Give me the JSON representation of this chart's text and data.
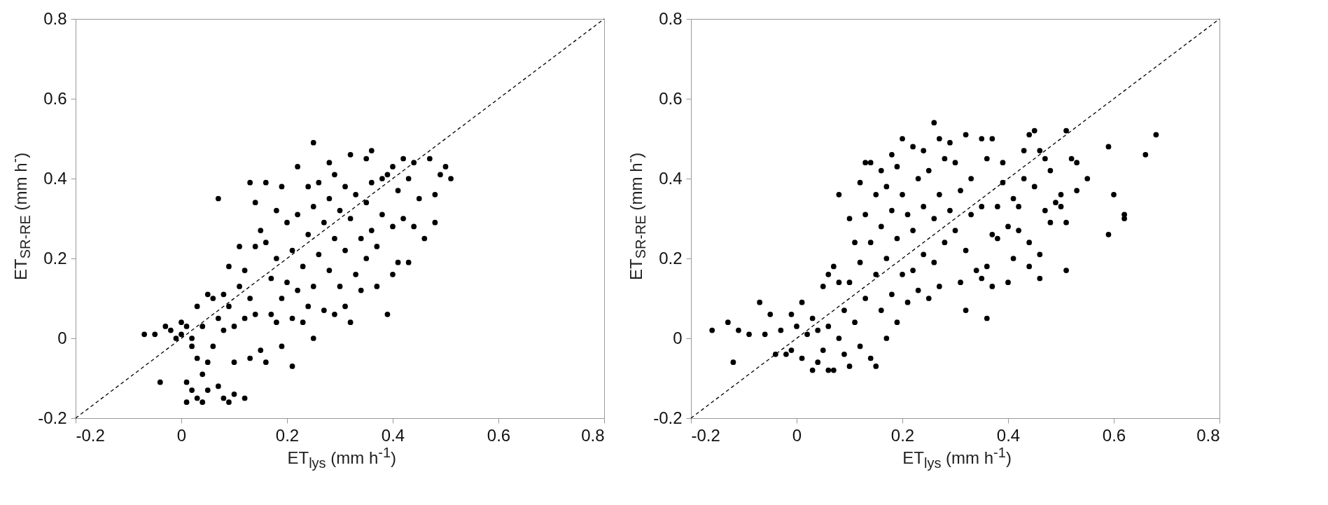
{
  "chart_data": [
    {
      "type": "scatter",
      "xlabel": "ET$_{lys}$ (mm h$^{-1}$)",
      "ylabel": "ET$_{SR-RE}$ (mm h$^{-}$)",
      "xlim": [
        -0.2,
        0.8
      ],
      "ylim": [
        -0.2,
        0.8
      ],
      "xticks": [
        -0.2,
        0,
        0.2,
        0.4,
        0.6,
        0.8
      ],
      "yticks": [
        -0.2,
        0,
        0.2,
        0.4,
        0.6,
        0.8
      ],
      "grid": false,
      "marker": "circle",
      "series": [
        {
          "type": "line",
          "color": "#000000",
          "line_style": "dashed",
          "marker": "none",
          "x": [
            -0.2,
            0.8
          ],
          "values": [
            -0.2,
            0.8
          ]
        },
        {
          "color": "#000000",
          "x": [
            -0.07,
            -0.05,
            -0.04,
            -0.03,
            -0.02,
            -0.01,
            0.0,
            0.0,
            0.01,
            0.01,
            0.01,
            0.02,
            0.02,
            0.02,
            0.03,
            0.03,
            0.03,
            0.04,
            0.04,
            0.04,
            0.05,
            0.05,
            0.05,
            0.06,
            0.06,
            0.07,
            0.07,
            0.07,
            0.08,
            0.08,
            0.08,
            0.09,
            0.09,
            0.09,
            0.1,
            0.1,
            0.1,
            0.11,
            0.11,
            0.12,
            0.12,
            0.12,
            0.13,
            0.13,
            0.13,
            0.14,
            0.14,
            0.14,
            0.15,
            0.15,
            0.16,
            0.16,
            0.16,
            0.17,
            0.17,
            0.18,
            0.18,
            0.18,
            0.19,
            0.19,
            0.19,
            0.2,
            0.2,
            0.21,
            0.21,
            0.21,
            0.22,
            0.22,
            0.22,
            0.23,
            0.23,
            0.24,
            0.24,
            0.24,
            0.25,
            0.25,
            0.25,
            0.25,
            0.26,
            0.26,
            0.27,
            0.27,
            0.28,
            0.28,
            0.28,
            0.29,
            0.29,
            0.29,
            0.3,
            0.3,
            0.31,
            0.31,
            0.31,
            0.32,
            0.32,
            0.32,
            0.33,
            0.33,
            0.34,
            0.34,
            0.35,
            0.35,
            0.35,
            0.36,
            0.36,
            0.36,
            0.37,
            0.37,
            0.38,
            0.38,
            0.39,
            0.39,
            0.4,
            0.4,
            0.4,
            0.41,
            0.41,
            0.42,
            0.42,
            0.43,
            0.43,
            0.44,
            0.44,
            0.45,
            0.46,
            0.47,
            0.48,
            0.48,
            0.49,
            0.5,
            0.51
          ],
          "values": [
            0.01,
            0.01,
            -0.11,
            0.03,
            0.02,
            0.0,
            0.04,
            0.01,
            -0.16,
            -0.11,
            0.03,
            -0.02,
            -0.13,
            0.0,
            -0.15,
            0.08,
            -0.05,
            -0.16,
            0.03,
            -0.09,
            0.11,
            -0.06,
            -0.13,
            0.1,
            -0.02,
            0.35,
            -0.12,
            0.05,
            0.11,
            -0.15,
            0.02,
            0.18,
            -0.16,
            0.08,
            -0.06,
            0.03,
            -0.14,
            0.13,
            0.23,
            -0.15,
            0.05,
            0.17,
            0.39,
            0.1,
            -0.05,
            0.34,
            0.06,
            0.23,
            0.27,
            -0.03,
            0.39,
            0.24,
            -0.06,
            0.15,
            0.06,
            0.32,
            0.2,
            0.04,
            0.38,
            0.1,
            -0.02,
            0.29,
            0.14,
            0.22,
            -0.07,
            0.05,
            0.43,
            0.31,
            0.12,
            0.18,
            0.04,
            0.38,
            0.26,
            0.08,
            0.49,
            0.33,
            0.0,
            0.13,
            0.21,
            0.39,
            0.29,
            0.07,
            0.44,
            0.35,
            0.17,
            0.41,
            0.06,
            0.25,
            0.32,
            0.13,
            0.38,
            0.08,
            0.22,
            0.46,
            0.04,
            0.3,
            0.36,
            0.16,
            0.25,
            0.12,
            0.45,
            0.34,
            0.2,
            0.47,
            0.39,
            0.27,
            0.13,
            0.23,
            0.4,
            0.31,
            0.06,
            0.41,
            0.16,
            0.28,
            0.43,
            0.19,
            0.37,
            0.45,
            0.3,
            0.19,
            0.4,
            0.28,
            0.44,
            0.35,
            0.25,
            0.45,
            0.29,
            0.36,
            0.41,
            0.43,
            0.4
          ]
        }
      ]
    },
    {
      "type": "scatter",
      "xlabel": "ET$_{lys}$ (mm h$^{-1}$)",
      "ylabel": "ET$_{SR-RE}$ (mm h$^{-}$)",
      "xlim": [
        -0.2,
        0.8
      ],
      "ylim": [
        -0.2,
        0.8
      ],
      "xticks": [
        -0.2,
        0,
        0.2,
        0.4,
        0.6,
        0.8
      ],
      "yticks": [
        -0.2,
        0,
        0.2,
        0.4,
        0.6,
        0.8
      ],
      "grid": false,
      "marker": "circle",
      "series": [
        {
          "type": "line",
          "color": "#000000",
          "line_style": "dashed",
          "marker": "none",
          "x": [
            -0.2,
            0.8
          ],
          "values": [
            -0.2,
            0.8
          ]
        },
        {
          "color": "#000000",
          "x": [
            -0.16,
            -0.13,
            -0.12,
            -0.11,
            -0.09,
            -0.07,
            -0.06,
            -0.05,
            -0.04,
            -0.03,
            -0.02,
            -0.01,
            -0.01,
            0.0,
            0.01,
            0.01,
            0.02,
            0.03,
            0.03,
            0.04,
            0.04,
            0.05,
            0.05,
            0.06,
            0.06,
            0.06,
            0.07,
            0.07,
            0.08,
            0.08,
            0.08,
            0.09,
            0.09,
            0.1,
            0.1,
            0.1,
            0.11,
            0.11,
            0.12,
            0.12,
            0.12,
            0.13,
            0.13,
            0.13,
            0.14,
            0.14,
            0.14,
            0.15,
            0.15,
            0.15,
            0.16,
            0.16,
            0.16,
            0.17,
            0.17,
            0.17,
            0.18,
            0.18,
            0.18,
            0.19,
            0.19,
            0.19,
            0.2,
            0.2,
            0.2,
            0.21,
            0.21,
            0.22,
            0.22,
            0.22,
            0.23,
            0.23,
            0.24,
            0.24,
            0.24,
            0.25,
            0.25,
            0.26,
            0.26,
            0.26,
            0.27,
            0.27,
            0.27,
            0.28,
            0.28,
            0.29,
            0.29,
            0.3,
            0.3,
            0.31,
            0.31,
            0.32,
            0.32,
            0.32,
            0.33,
            0.33,
            0.34,
            0.35,
            0.35,
            0.35,
            0.36,
            0.36,
            0.36,
            0.37,
            0.37,
            0.37,
            0.38,
            0.38,
            0.39,
            0.39,
            0.4,
            0.4,
            0.41,
            0.41,
            0.42,
            0.42,
            0.43,
            0.43,
            0.44,
            0.44,
            0.44,
            0.45,
            0.45,
            0.46,
            0.46,
            0.46,
            0.47,
            0.47,
            0.48,
            0.48,
            0.49,
            0.5,
            0.5,
            0.51,
            0.51,
            0.51,
            0.52,
            0.53,
            0.53,
            0.55,
            0.59,
            0.59,
            0.6,
            0.62,
            0.62,
            0.66,
            0.68
          ],
          "values": [
            0.02,
            0.04,
            -0.06,
            0.02,
            0.01,
            0.09,
            0.01,
            0.06,
            -0.04,
            0.02,
            -0.04,
            0.06,
            -0.03,
            0.03,
            0.09,
            -0.05,
            0.01,
            -0.08,
            0.05,
            0.02,
            -0.06,
            0.13,
            -0.03,
            0.16,
            -0.08,
            0.03,
            0.18,
            -0.08,
            0.36,
            0.14,
            0.0,
            0.07,
            -0.04,
            0.3,
            0.14,
            -0.07,
            0.24,
            0.04,
            0.39,
            0.19,
            -0.02,
            0.44,
            0.31,
            0.1,
            0.44,
            0.24,
            -0.05,
            0.36,
            0.16,
            -0.07,
            0.42,
            0.28,
            0.07,
            0.38,
            0.2,
            0.0,
            0.46,
            0.32,
            0.11,
            0.43,
            0.25,
            0.04,
            0.5,
            0.36,
            0.16,
            0.31,
            0.09,
            0.48,
            0.27,
            0.17,
            0.4,
            0.12,
            0.47,
            0.33,
            0.21,
            0.42,
            0.1,
            0.54,
            0.3,
            0.19,
            0.5,
            0.36,
            0.13,
            0.45,
            0.24,
            0.49,
            0.32,
            0.44,
            0.27,
            0.37,
            0.14,
            0.51,
            0.07,
            0.22,
            0.4,
            0.31,
            0.17,
            0.5,
            0.15,
            0.33,
            0.05,
            0.45,
            0.18,
            0.5,
            0.26,
            0.13,
            0.25,
            0.33,
            0.44,
            0.39,
            0.14,
            0.28,
            0.35,
            0.2,
            0.27,
            0.33,
            0.47,
            0.4,
            0.51,
            0.24,
            0.18,
            0.52,
            0.38,
            0.47,
            0.15,
            0.21,
            0.32,
            0.45,
            0.29,
            0.42,
            0.34,
            0.36,
            0.33,
            0.52,
            0.29,
            0.17,
            0.45,
            0.37,
            0.44,
            0.4,
            0.48,
            0.26,
            0.36,
            0.31,
            0.3,
            0.46,
            0.51
          ]
        }
      ]
    }
  ]
}
